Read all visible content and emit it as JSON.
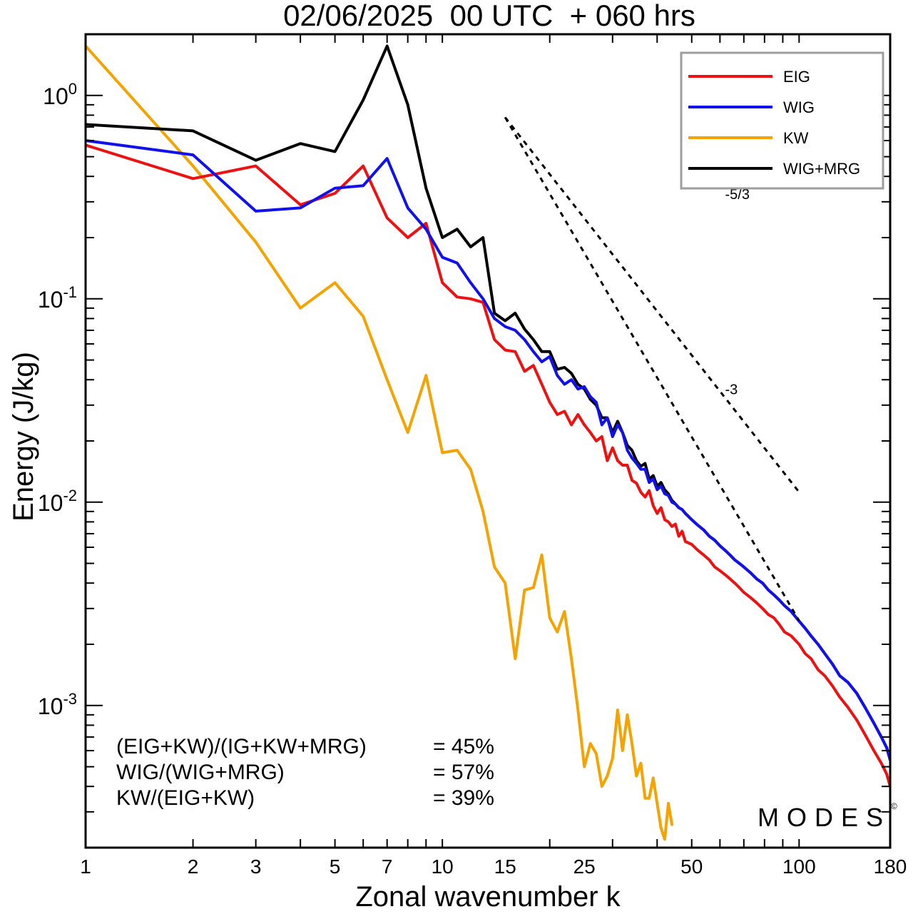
{
  "chart_data": {
    "type": "line",
    "title": "02/06/2025  00 UTC  + 060 hrs",
    "xlabel": "Zonal wavenumber k",
    "ylabel": "Energy (J/kg)",
    "xscale": "log",
    "yscale": "log",
    "xlim": [
      1,
      180
    ],
    "ylim": [
      0.0002,
      2.0
    ],
    "x_ticks": [
      1,
      2,
      3,
      5,
      7,
      10,
      15,
      25,
      50,
      100,
      180
    ],
    "x_tick_labels": [
      "1",
      "2",
      "3",
      "5",
      "7",
      "10",
      "15",
      "25",
      "50",
      "100",
      "180"
    ],
    "y_ticks": [
      1,
      0.1,
      0.01,
      0.001
    ],
    "y_tick_labels": [
      {
        "base": "10",
        "exp": "0"
      },
      {
        "base": "10",
        "exp": "-1"
      },
      {
        "base": "10",
        "exp": "-2"
      },
      {
        "base": "10",
        "exp": "-3"
      }
    ],
    "grid": false,
    "legend_position": "top-right",
    "series": [
      {
        "name": "EIG",
        "color": "#ee1111",
        "points": [
          [
            1,
            0.57
          ],
          [
            2,
            0.39
          ],
          [
            3,
            0.45
          ],
          [
            4,
            0.29
          ],
          [
            5,
            0.33
          ],
          [
            6,
            0.45
          ],
          [
            7,
            0.25
          ],
          [
            8,
            0.2
          ],
          [
            9,
            0.235
          ],
          [
            10,
            0.12
          ],
          [
            11,
            0.102
          ],
          [
            12,
            0.1
          ],
          [
            13,
            0.096
          ],
          [
            14,
            0.063
          ],
          [
            15,
            0.056
          ],
          [
            16,
            0.055
          ],
          [
            17,
            0.044
          ],
          [
            18,
            0.047
          ],
          [
            19,
            0.038
          ],
          [
            20,
            0.031
          ],
          [
            21,
            0.027
          ],
          [
            22,
            0.028
          ],
          [
            23,
            0.024
          ],
          [
            24,
            0.027
          ],
          [
            25,
            0.024
          ],
          [
            26,
            0.022
          ],
          [
            27,
            0.02
          ],
          [
            28,
            0.021
          ],
          [
            29,
            0.016
          ],
          [
            30,
            0.0185
          ],
          [
            31,
            0.016
          ],
          [
            32,
            0.0152
          ],
          [
            33,
            0.0152
          ],
          [
            34,
            0.0128
          ],
          [
            35,
            0.0124
          ],
          [
            36,
            0.0112
          ],
          [
            37,
            0.0106
          ],
          [
            38,
            0.0114
          ],
          [
            39,
            0.0096
          ],
          [
            40,
            0.0088
          ],
          [
            41,
            0.0094
          ],
          [
            42,
            0.0082
          ],
          [
            43,
            0.008
          ],
          [
            44,
            0.0076
          ],
          [
            45,
            0.0078
          ],
          [
            46,
            0.0068
          ],
          [
            47,
            0.0072
          ],
          [
            48,
            0.0064
          ],
          [
            50,
            0.0062
          ],
          [
            52,
            0.0058
          ],
          [
            54,
            0.0055
          ],
          [
            56,
            0.0052
          ],
          [
            58,
            0.0048
          ],
          [
            60,
            0.0046
          ],
          [
            62,
            0.0044
          ],
          [
            64,
            0.0042
          ],
          [
            66,
            0.004
          ],
          [
            68,
            0.0038
          ],
          [
            70,
            0.0036
          ],
          [
            73,
            0.0034
          ],
          [
            76,
            0.0032
          ],
          [
            79,
            0.003
          ],
          [
            82,
            0.0028
          ],
          [
            85,
            0.0027
          ],
          [
            88,
            0.0025
          ],
          [
            91,
            0.0023
          ],
          [
            95,
            0.0022
          ],
          [
            100,
            0.002
          ],
          [
            104,
            0.0018
          ],
          [
            108,
            0.0017
          ],
          [
            113,
            0.0015
          ],
          [
            118,
            0.0014
          ],
          [
            124,
            0.00125
          ],
          [
            130,
            0.0011
          ],
          [
            137,
            0.00098
          ],
          [
            145,
            0.00085
          ],
          [
            153,
            0.00072
          ],
          [
            162,
            0.0006
          ],
          [
            170,
            0.00052
          ],
          [
            176,
            0.00046
          ],
          [
            180,
            0.0004
          ]
        ]
      },
      {
        "name": "WIG",
        "color": "#1111ee",
        "points": [
          [
            1,
            0.6
          ],
          [
            2,
            0.51
          ],
          [
            3,
            0.27
          ],
          [
            4,
            0.28
          ],
          [
            5,
            0.35
          ],
          [
            6,
            0.36
          ],
          [
            7,
            0.49
          ],
          [
            8,
            0.28
          ],
          [
            9,
            0.22
          ],
          [
            10,
            0.16
          ],
          [
            11,
            0.15
          ],
          [
            12,
            0.12
          ],
          [
            13,
            0.1
          ],
          [
            14,
            0.08
          ],
          [
            15,
            0.073
          ],
          [
            16,
            0.07
          ],
          [
            17,
            0.063
          ],
          [
            18,
            0.055
          ],
          [
            19,
            0.049
          ],
          [
            20,
            0.052
          ],
          [
            21,
            0.042
          ],
          [
            22,
            0.038
          ],
          [
            23,
            0.04
          ],
          [
            24,
            0.036
          ],
          [
            25,
            0.037
          ],
          [
            26,
            0.033
          ],
          [
            27,
            0.031
          ],
          [
            28,
            0.024
          ],
          [
            29,
            0.026
          ],
          [
            30,
            0.021
          ],
          [
            31,
            0.024
          ],
          [
            32,
            0.022
          ],
          [
            33,
            0.018
          ],
          [
            34,
            0.0165
          ],
          [
            35,
            0.0155
          ],
          [
            36,
            0.0145
          ],
          [
            37,
            0.0145
          ],
          [
            38,
            0.0125
          ],
          [
            39,
            0.013
          ],
          [
            40,
            0.0115
          ],
          [
            41,
            0.012
          ],
          [
            42,
            0.011
          ],
          [
            43,
            0.0108
          ],
          [
            44,
            0.01
          ],
          [
            45,
            0.0098
          ],
          [
            46,
            0.0094
          ],
          [
            47,
            0.0092
          ],
          [
            48,
            0.0088
          ],
          [
            50,
            0.0082
          ],
          [
            52,
            0.0077
          ],
          [
            54,
            0.0073
          ],
          [
            56,
            0.0068
          ],
          [
            58,
            0.0065
          ],
          [
            60,
            0.0061
          ],
          [
            62,
            0.0058
          ],
          [
            64,
            0.0055
          ],
          [
            66,
            0.0052
          ],
          [
            68,
            0.005
          ],
          [
            70,
            0.0048
          ],
          [
            73,
            0.0045
          ],
          [
            76,
            0.0042
          ],
          [
            79,
            0.004
          ],
          [
            82,
            0.0037
          ],
          [
            85,
            0.0035
          ],
          [
            88,
            0.0033
          ],
          [
            91,
            0.0031
          ],
          [
            95,
            0.0029
          ],
          [
            100,
            0.0026
          ],
          [
            104,
            0.0024
          ],
          [
            108,
            0.0022
          ],
          [
            113,
            0.002
          ],
          [
            118,
            0.0018
          ],
          [
            124,
            0.0016
          ],
          [
            130,
            0.0014
          ],
          [
            137,
            0.0013
          ],
          [
            145,
            0.00115
          ],
          [
            153,
            0.00098
          ],
          [
            162,
            0.00082
          ],
          [
            170,
            0.0007
          ],
          [
            176,
            0.00062
          ],
          [
            180,
            0.00054
          ]
        ]
      },
      {
        "name": "KW",
        "color": "#f5a300",
        "points": [
          [
            1,
            1.75
          ],
          [
            2,
            0.45
          ],
          [
            3,
            0.19
          ],
          [
            4,
            0.09
          ],
          [
            5,
            0.12
          ],
          [
            6,
            0.082
          ],
          [
            7,
            0.04
          ],
          [
            8,
            0.022
          ],
          [
            9,
            0.042
          ],
          [
            10,
            0.0175
          ],
          [
            11,
            0.018
          ],
          [
            12,
            0.0145
          ],
          [
            13,
            0.009
          ],
          [
            14,
            0.0048
          ],
          [
            15,
            0.004
          ],
          [
            16,
            0.0017
          ],
          [
            17,
            0.0037
          ],
          [
            18,
            0.0038
          ],
          [
            19,
            0.0055
          ],
          [
            20,
            0.0027
          ],
          [
            21,
            0.0023
          ],
          [
            22,
            0.0029
          ],
          [
            23,
            0.0017
          ],
          [
            24,
            0.00095
          ],
          [
            25,
            0.0005
          ],
          [
            26,
            0.00065
          ],
          [
            27,
            0.00058
          ],
          [
            28,
            0.0004
          ],
          [
            29,
            0.00045
          ],
          [
            30,
            0.00055
          ],
          [
            31,
            0.00095
          ],
          [
            32,
            0.0006
          ],
          [
            33,
            0.0009
          ],
          [
            34,
            0.00065
          ],
          [
            35,
            0.00045
          ],
          [
            36,
            0.00052
          ],
          [
            37,
            0.00035
          ],
          [
            38,
            0.00035
          ],
          [
            39,
            0.00044
          ],
          [
            40,
            0.00033
          ],
          [
            41,
            0.00025
          ],
          [
            42,
            0.00022
          ],
          [
            43,
            0.00033
          ],
          [
            44,
            0.00026
          ]
        ]
      },
      {
        "name": "WIG+MRG",
        "color": "#000000",
        "points": [
          [
            1,
            0.72
          ],
          [
            2,
            0.67
          ],
          [
            3,
            0.48
          ],
          [
            4,
            0.58
          ],
          [
            5,
            0.53
          ],
          [
            6,
            0.95
          ],
          [
            7,
            1.75
          ],
          [
            8,
            0.9
          ],
          [
            9,
            0.35
          ],
          [
            10,
            0.2
          ],
          [
            11,
            0.22
          ],
          [
            12,
            0.18
          ],
          [
            13,
            0.2
          ],
          [
            14,
            0.085
          ],
          [
            15,
            0.078
          ],
          [
            16,
            0.085
          ],
          [
            17,
            0.071
          ],
          [
            18,
            0.063
          ],
          [
            19,
            0.055
          ],
          [
            20,
            0.055
          ],
          [
            21,
            0.045
          ],
          [
            22,
            0.046
          ],
          [
            23,
            0.043
          ],
          [
            24,
            0.038
          ],
          [
            25,
            0.036
          ],
          [
            26,
            0.032
          ],
          [
            27,
            0.03
          ],
          [
            28,
            0.026
          ],
          [
            29,
            0.026
          ],
          [
            30,
            0.022
          ],
          [
            31,
            0.025
          ],
          [
            32,
            0.022
          ],
          [
            33,
            0.019
          ],
          [
            34,
            0.018
          ],
          [
            35,
            0.016
          ],
          [
            36,
            0.015
          ],
          [
            37,
            0.0155
          ],
          [
            38,
            0.013
          ],
          [
            39,
            0.0135
          ],
          [
            40,
            0.012
          ],
          [
            41,
            0.0125
          ],
          [
            42,
            0.0115
          ],
          [
            43,
            0.011
          ],
          [
            44,
            0.0102
          ],
          [
            45,
            0.0098
          ],
          [
            46,
            0.0094
          ],
          [
            47,
            0.0092
          ],
          [
            48,
            0.0088
          ],
          [
            50,
            0.0082
          ],
          [
            52,
            0.0077
          ],
          [
            54,
            0.0073
          ],
          [
            56,
            0.0068
          ],
          [
            58,
            0.0065
          ],
          [
            60,
            0.0061
          ],
          [
            62,
            0.0058
          ],
          [
            64,
            0.0055
          ],
          [
            66,
            0.0052
          ],
          [
            68,
            0.005
          ],
          [
            70,
            0.0048
          ],
          [
            73,
            0.0045
          ],
          [
            76,
            0.0042
          ],
          [
            79,
            0.004
          ],
          [
            82,
            0.0037
          ],
          [
            85,
            0.0035
          ],
          [
            88,
            0.0033
          ],
          [
            91,
            0.0031
          ],
          [
            95,
            0.0029
          ],
          [
            100,
            0.0026
          ],
          [
            104,
            0.0024
          ],
          [
            108,
            0.0022
          ],
          [
            113,
            0.002
          ],
          [
            118,
            0.0018
          ],
          [
            124,
            0.0016
          ],
          [
            130,
            0.0014
          ],
          [
            137,
            0.0013
          ],
          [
            145,
            0.00115
          ],
          [
            153,
            0.00098
          ],
          [
            162,
            0.00082
          ],
          [
            170,
            0.0007
          ],
          [
            176,
            0.00062
          ],
          [
            180,
            0.00054
          ]
        ]
      }
    ],
    "reference_lines": [
      {
        "label": "-5/3",
        "slope": -1.6667,
        "x": [
          15,
          100
        ],
        "y": [
          0.78,
          0.0112
        ],
        "label_at": [
          62,
          0.31
        ]
      },
      {
        "label": "-3",
        "slope": -3,
        "x": [
          15,
          100
        ],
        "y": [
          0.78,
          0.00261
        ],
        "label_at": [
          62,
          0.034
        ]
      }
    ],
    "annotations": [
      {
        "text": "(EIG+KW)/(IG+KW+MRG)",
        "value": "= 45%"
      },
      {
        "text": "WIG/(WIG+MRG)",
        "value": "= 57%"
      },
      {
        "text": "KW/(EIG+KW)",
        "value": "= 39%"
      }
    ],
    "watermark": "MODES",
    "watermark_symbol": "©"
  }
}
